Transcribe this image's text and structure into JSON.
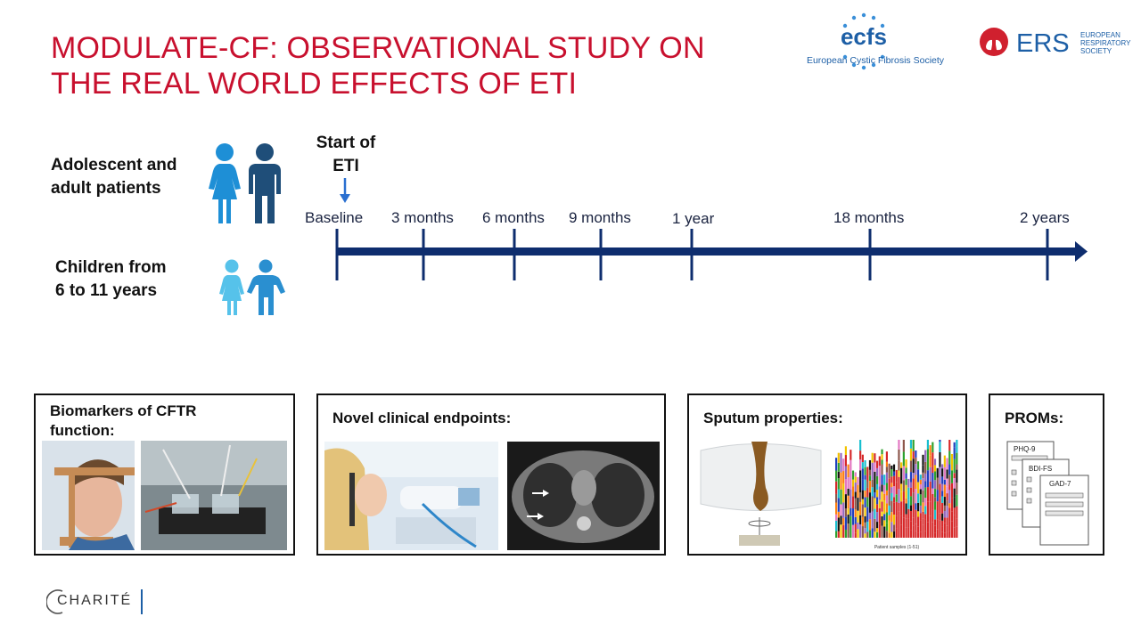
{
  "title": {
    "line1": "MODULATE-CF: OBSERVATIONAL STUDY ON",
    "line2": "THE REAL WORLD EFFECTS OF ETI"
  },
  "logos": {
    "ecfs_mark": "ecfs",
    "ecfs_name": "European Cystic Fibrosis Society",
    "ers_mark": "ERS",
    "ers_name_line1": "EUROPEAN",
    "ers_name_line2": "RESPIRATORY",
    "ers_name_line3": "SOCIETY"
  },
  "groups": {
    "adults_line1": "Adolescent and",
    "adults_line2": "adult patients",
    "children_line1": "Children from",
    "children_line2": "6 to 11 years"
  },
  "timeline": {
    "start_line1": "Start of",
    "start_line2": "ETI",
    "points": [
      "Baseline",
      "3 months",
      "6 months",
      "9 months",
      "1 year",
      "18 months",
      "2 years"
    ]
  },
  "panels": {
    "biomarkers": "Biomarkers of CFTR function:",
    "endpoints": "Novel clinical endpoints:",
    "sputum": "Sputum properties:",
    "proms": "PROMs:"
  },
  "proms_forms": [
    "PHQ-9",
    "BDI-FS",
    "GAD-7"
  ],
  "sputum_chart_caption": "Patient samples (1-51)",
  "footer": {
    "institution": "CHARITÉ"
  },
  "colors": {
    "title_red": "#c8102e",
    "timeline_navy": "#0e2d6e",
    "adult_female": "#1e8fd6",
    "adult_male": "#1f4e79",
    "child_female": "#56c2ea",
    "child_male": "#2a8fd0"
  }
}
